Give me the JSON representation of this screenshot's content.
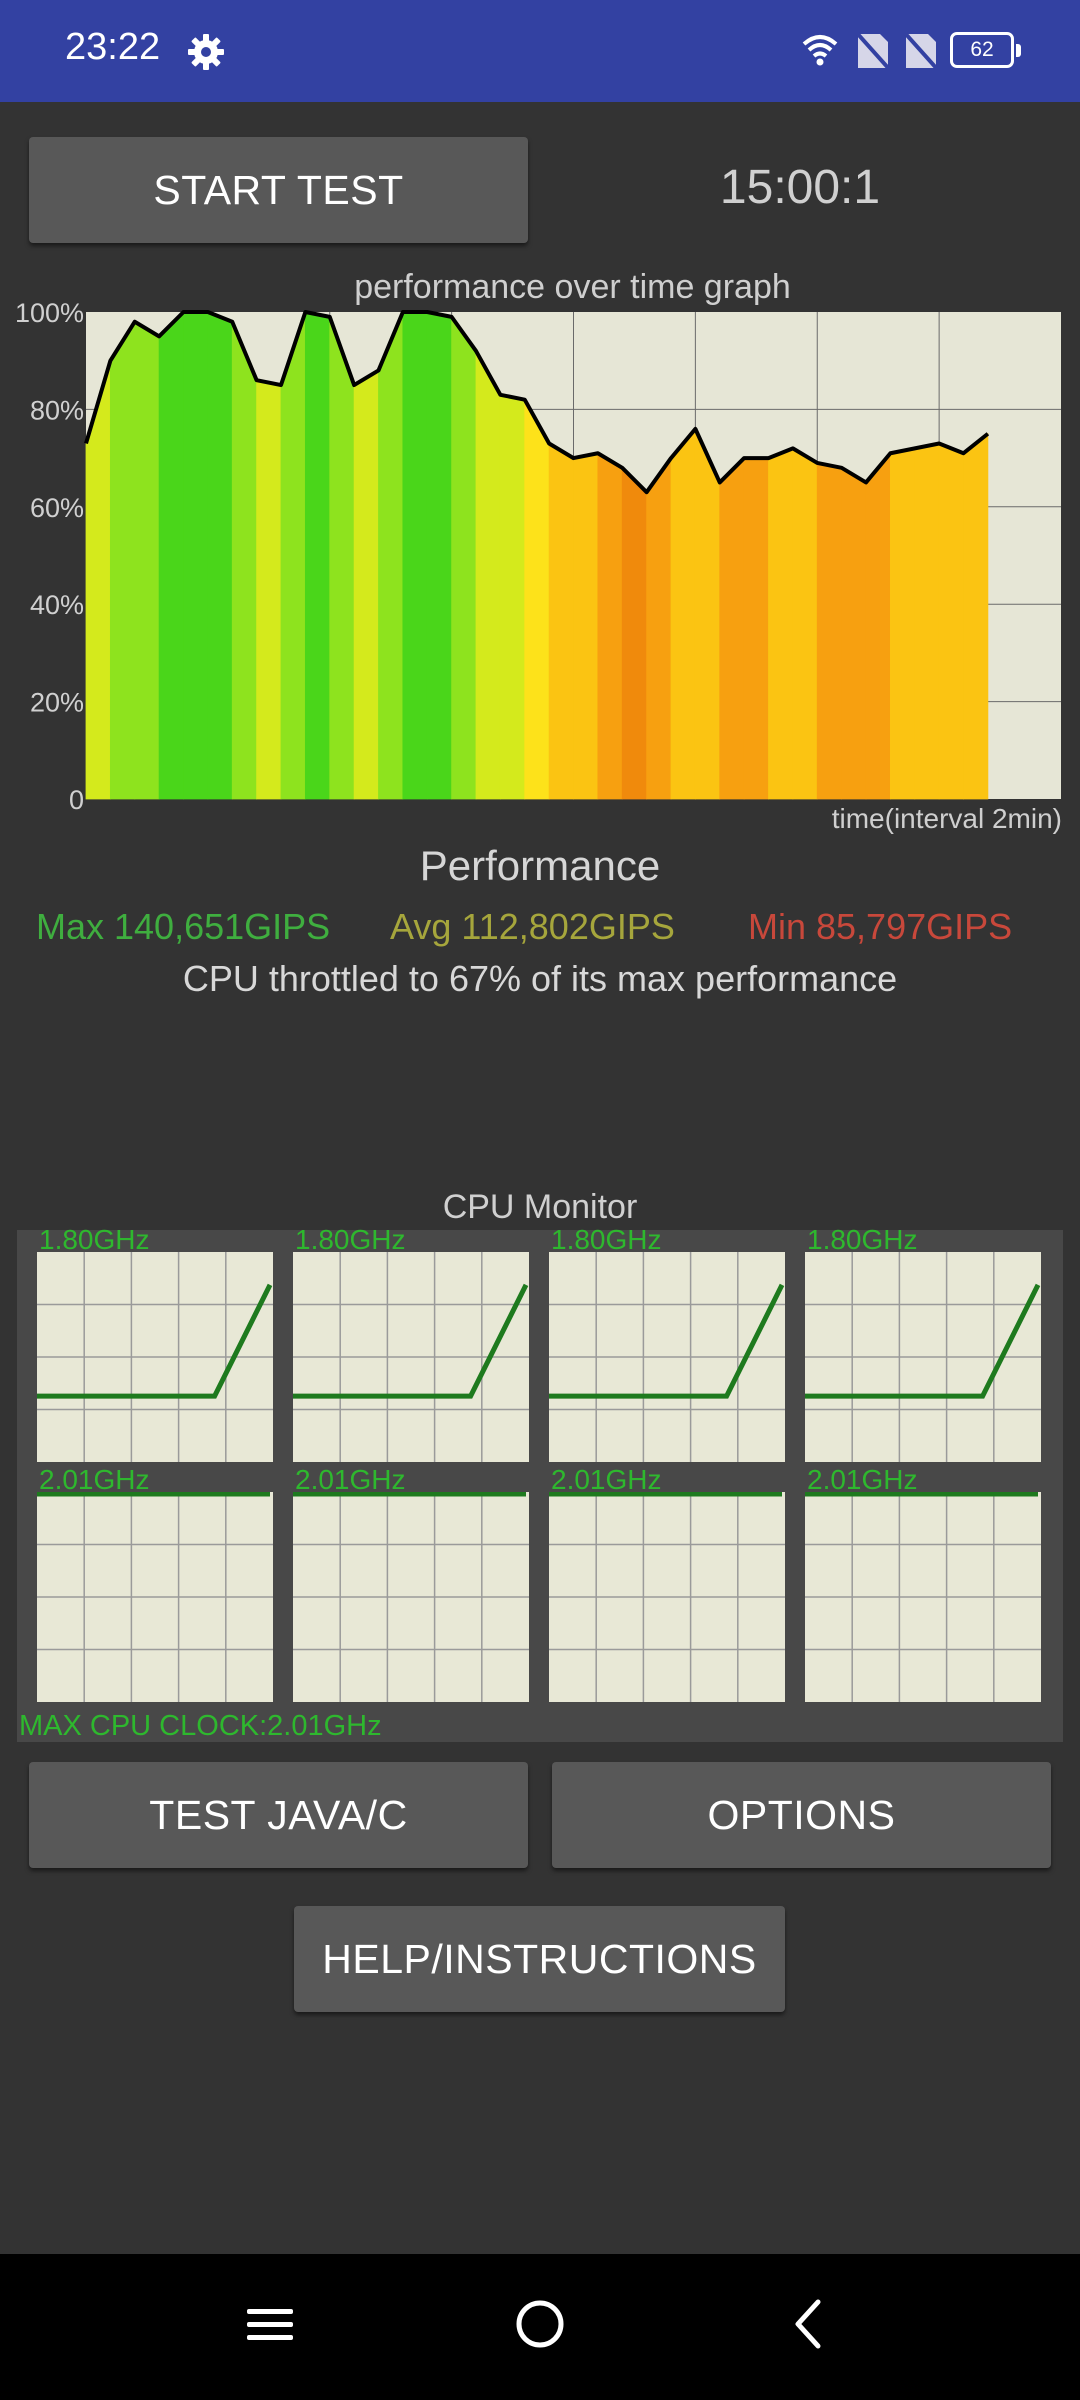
{
  "status_bar": {
    "time": "23:22",
    "battery_level": "62",
    "icons": [
      "gear-icon",
      "wifi-icon",
      "no-sim-icon",
      "no-sim-icon",
      "battery-icon"
    ]
  },
  "controls": {
    "start_label": "START TEST",
    "timer": "15:00:1"
  },
  "graph": {
    "title": "performance over time graph",
    "time_label": "time(interval 2min)",
    "y_ticks": [
      "100%",
      "80%",
      "60%",
      "40%",
      "20%",
      "0"
    ]
  },
  "chart_data": {
    "type": "area",
    "title": "performance over time graph",
    "xlabel": "time(interval 2min)",
    "ylabel": "",
    "ylim": [
      0,
      100
    ],
    "y_ticks": [
      "100%",
      "80%",
      "60%",
      "40%",
      "20%",
      "0"
    ],
    "x_interval_minutes": 2,
    "grid": true,
    "series": [
      {
        "x_minutes": [
          0.0,
          0.4,
          0.8,
          1.2,
          1.6,
          2.0,
          2.4,
          2.8,
          3.2,
          3.6,
          4.0,
          4.4,
          4.8,
          5.2,
          5.6,
          6.0,
          6.4,
          6.8,
          7.2,
          7.6,
          8.0,
          8.4,
          8.8,
          9.2,
          9.6,
          10.0,
          10.4,
          10.8,
          11.2,
          11.6,
          12.0,
          12.4,
          12.8,
          13.2,
          13.6,
          14.0,
          14.4,
          14.8
        ],
        "values": [
          73,
          90,
          98,
          95,
          100,
          100,
          98,
          86,
          85,
          100,
          99,
          85,
          88,
          100,
          100,
          99,
          92,
          83,
          82,
          73,
          70,
          71,
          68,
          63,
          70,
          76,
          65,
          70,
          70,
          72,
          69,
          68,
          65,
          71,
          72,
          73,
          71,
          75
        ]
      }
    ]
  },
  "performance": {
    "heading": "Performance",
    "max": "Max 140,651GIPS",
    "avg": "Avg 112,802GIPS",
    "min": "Min 85,797GIPS",
    "throttle_text": "CPU throttled to 67% of its max performance",
    "colors": {
      "max": "#3fae3f",
      "avg": "#a6a63c",
      "min": "#c8483b"
    }
  },
  "cpu_monitor": {
    "title": "CPU Monitor",
    "cores": [
      {
        "freq": "1.80GHz",
        "history": [
          0.31,
          0.31,
          0.31,
          0.31,
          0.31,
          0.85
        ]
      },
      {
        "freq": "1.80GHz",
        "history": [
          0.31,
          0.31,
          0.31,
          0.31,
          0.31,
          0.85
        ]
      },
      {
        "freq": "1.80GHz",
        "history": [
          0.31,
          0.31,
          0.31,
          0.31,
          0.31,
          0.85
        ]
      },
      {
        "freq": "1.80GHz",
        "history": [
          0.31,
          0.31,
          0.31,
          0.31,
          0.31,
          0.85
        ]
      },
      {
        "freq": "2.01GHz",
        "history": [
          1,
          1,
          1,
          1,
          1,
          1
        ]
      },
      {
        "freq": "2.01GHz",
        "history": [
          1,
          1,
          1,
          1,
          1,
          1
        ]
      },
      {
        "freq": "2.01GHz",
        "history": [
          1,
          1,
          1,
          1,
          1,
          1
        ]
      },
      {
        "freq": "2.01GHz",
        "history": [
          1,
          1,
          1,
          1,
          1,
          1
        ]
      }
    ],
    "max_clock": "MAX CPU CLOCK:2.01GHz"
  },
  "buttons": {
    "test_java_label": "TEST JAVA/C",
    "options_label": "OPTIONS",
    "help_label": "HELP/INSTRUCTIONS"
  },
  "nav": {
    "icons": [
      "menu-icon",
      "home-icon",
      "back-icon"
    ]
  }
}
